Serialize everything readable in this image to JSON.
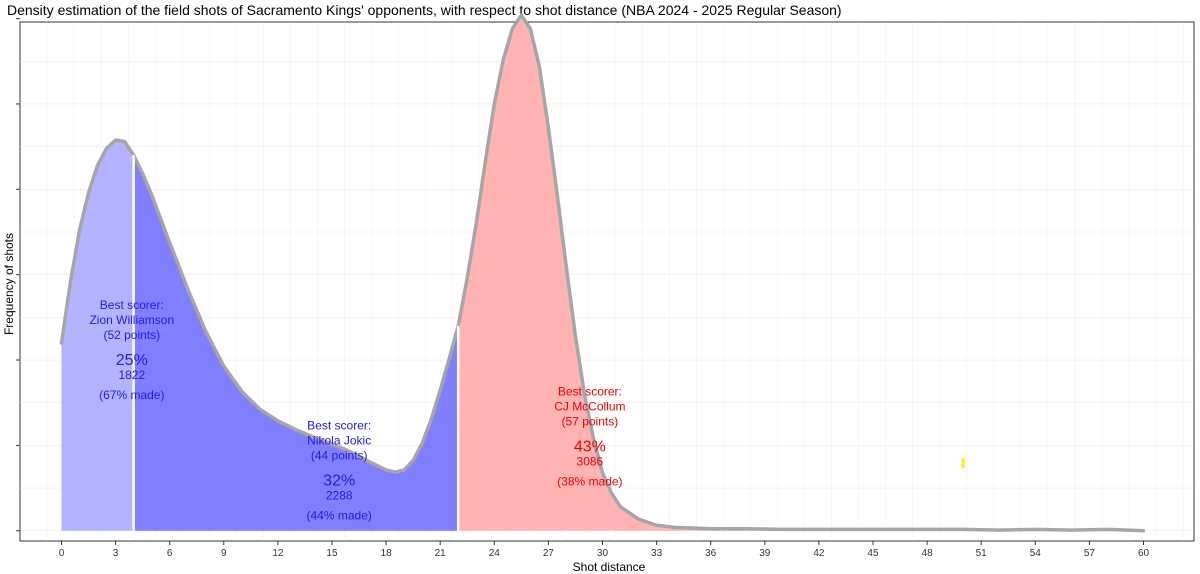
{
  "chart_data": {
    "type": "area",
    "title": "Density estimation of the field shots of Sacramento Kings' opponents, with respect to shot distance (NBA 2024 - 2025 Regular Season)",
    "xlabel": "Shot distance",
    "ylabel": "Frequency of shots",
    "xlim": [
      -2.3,
      62.8
    ],
    "ylim": [
      -0.0015,
      0.0745
    ],
    "x_ticks": [
      "0",
      "3",
      "6",
      "9",
      "12",
      "15",
      "18",
      "21",
      "24",
      "27",
      "30",
      "33",
      "36",
      "39",
      "42",
      "45",
      "48",
      "51",
      "54",
      "57",
      "60"
    ],
    "grid": true,
    "curve": {
      "x": [
        0,
        0.5,
        1,
        1.5,
        2,
        2.5,
        3,
        3.5,
        4,
        4.5,
        5,
        6,
        7,
        8,
        9,
        10,
        11,
        12,
        13,
        14,
        15,
        16,
        17,
        18,
        18.5,
        19,
        19.5,
        20,
        20.5,
        21,
        21.5,
        22,
        22.5,
        23,
        23.5,
        24,
        24.5,
        25,
        25.5,
        26,
        26.5,
        27,
        27.5,
        28,
        28.5,
        29,
        29.5,
        30,
        30.5,
        31,
        32,
        33,
        34,
        35,
        36,
        38,
        40,
        42,
        44,
        46,
        48,
        50,
        52,
        54,
        56,
        58,
        60
      ],
      "y": [
        0.0275,
        0.0365,
        0.044,
        0.0495,
        0.0535,
        0.056,
        0.0572,
        0.057,
        0.055,
        0.0523,
        0.0492,
        0.0422,
        0.0354,
        0.0292,
        0.0241,
        0.0204,
        0.0178,
        0.0161,
        0.0148,
        0.0137,
        0.0127,
        0.0116,
        0.0102,
        0.0089,
        0.0086,
        0.0089,
        0.0103,
        0.0128,
        0.0163,
        0.0206,
        0.0252,
        0.03,
        0.037,
        0.045,
        0.054,
        0.0625,
        0.069,
        0.0735,
        0.0755,
        0.0735,
        0.068,
        0.059,
        0.049,
        0.0385,
        0.0285,
        0.02,
        0.0135,
        0.0085,
        0.0055,
        0.0035,
        0.0017,
        0.0008,
        0.0005,
        0.0004,
        0.0003,
        0.0003,
        0.0002,
        0.0002,
        0.0002,
        0.0002,
        0.0002,
        0.0002,
        0.0001,
        0.0002,
        0.0001,
        0.0002,
        0.0
      ]
    },
    "regions": [
      {
        "from": 0,
        "to": 4,
        "color": "#b3b3ff",
        "scorer_label": "Best scorer:",
        "scorer_name": "Zion Williamson",
        "scorer_points": "(52 points)",
        "pct": "25%",
        "count": "1822",
        "made": "(67% made)",
        "text_color": "#2020e0",
        "label_x": 3.9,
        "label_y_top": 0.0325
      },
      {
        "from": 4,
        "to": 22,
        "color": "#7f7fff",
        "scorer_label": "Best scorer:",
        "scorer_name": "Nikola Jokic",
        "scorer_points": "(44 points)",
        "pct": "32%",
        "count": "2288",
        "made": "(44% made)",
        "text_color": "#2020e0",
        "label_x": 15.4,
        "label_y_top": 0.0148
      },
      {
        "from": 22,
        "to": 60,
        "color": "#ffb3b3",
        "scorer_label": "Best scorer:",
        "scorer_name": "CJ McCollum",
        "scorer_points": "(57 points)",
        "pct": "43%",
        "count": "3086",
        "made": "(38% made)",
        "text_color": "#ee0000",
        "label_x": 29.3,
        "label_y_top": 0.0198
      }
    ],
    "boundaries": [
      4,
      22
    ],
    "yellow_mark": {
      "x": 50,
      "y": 0.0099
    }
  }
}
